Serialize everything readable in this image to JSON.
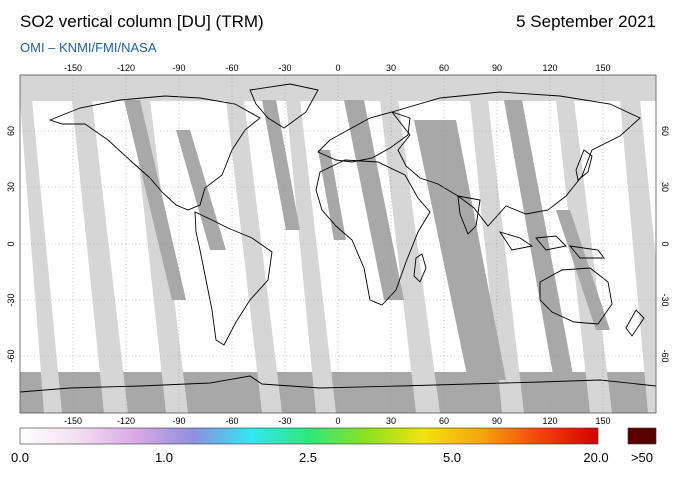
{
  "header": {
    "title": "SO2 vertical column [DU] (TRM)",
    "date": "5 September 2021",
    "source": "OMI  –  KNMI/FMI/NASA"
  },
  "map": {
    "projection": "equirectangular",
    "lon_range": [
      -180,
      180
    ],
    "lat_range": [
      -90,
      90
    ],
    "gridlines": "dotted",
    "lon_ticks": [
      "-150",
      "-120",
      "-90",
      "-60",
      "-30",
      "0",
      "30",
      "60",
      "90",
      "120",
      "150"
    ],
    "lat_ticks": [
      "60",
      "30",
      "0",
      "-30",
      "-60"
    ],
    "colors": {
      "no_data": "#d6d6d6",
      "orbit_gap": "#a8a8a8",
      "coastline": "#000000",
      "background": "#ffffff"
    }
  },
  "colorbar": {
    "labels": [
      "0.0",
      "1.0",
      "2.5",
      "5.0",
      "20.0"
    ],
    "overflow_label": ">50",
    "overflow_color": "#5a0000",
    "stops": [
      "#ffffff",
      "#f2dff2",
      "#d9a9e6",
      "#8f8fe0",
      "#33e6f2",
      "#2ee87a",
      "#8de021",
      "#f2e20f",
      "#f5a30d",
      "#f2420a",
      "#d60000"
    ]
  }
}
